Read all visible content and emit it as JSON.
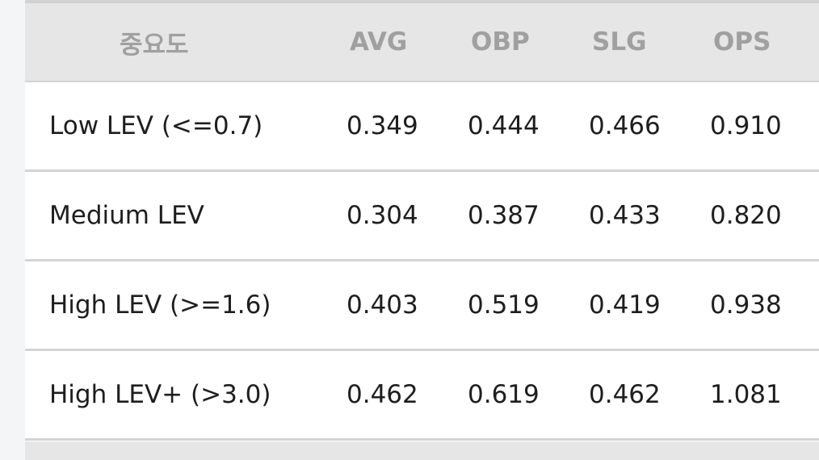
{
  "table": {
    "headers": [
      "중요도",
      "AVG",
      "OBP",
      "SLG",
      "OPS"
    ],
    "rows": [
      [
        "Low LEV (<=0.7)",
        "0.349",
        "0.444",
        "0.466",
        "0.910"
      ],
      [
        "Medium LEV",
        "0.304",
        "0.387",
        "0.433",
        "0.820"
      ],
      [
        "High LEV (>=1.6)",
        "0.403",
        "0.519",
        "0.419",
        "0.938"
      ],
      [
        "High LEV+ (>3.0)",
        "0.462",
        "0.619",
        "0.462",
        "1.081"
      ]
    ]
  },
  "colors": {
    "header_bg": "#e6e6e6",
    "header_text": "#a0a0a0",
    "body_text": "#1e1e1e",
    "row_border": "#d4d4d4",
    "page_bg": "#f4f5f7"
  }
}
